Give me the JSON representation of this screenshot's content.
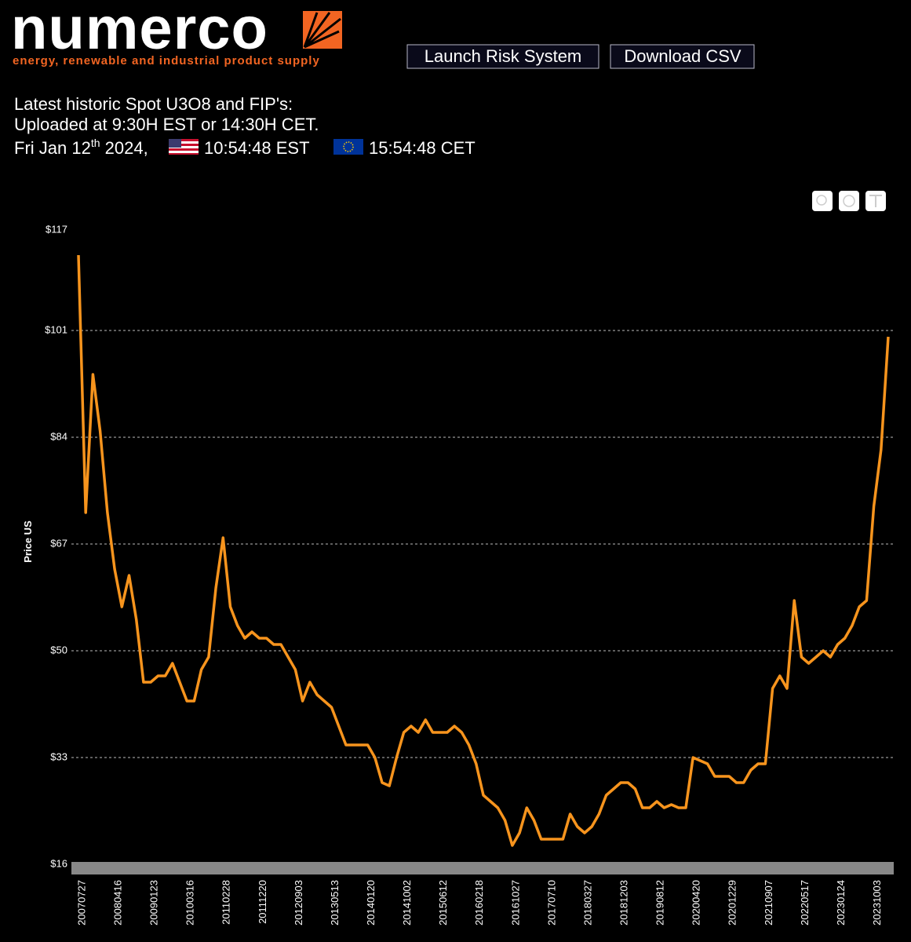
{
  "header": {
    "logo": "numerco",
    "tagline": "energy, renewable and industrial product supply"
  },
  "buttons": [
    "Launch Risk System",
    "Download CSV"
  ],
  "info": {
    "line1": "Latest historic Spot U3O8 and FIP's:",
    "line2": "Uploaded at 9:30H EST or 14:30H CET.",
    "date_main": "Fri Jan 12",
    "date_sup": "th",
    "date_year": " 2024,",
    "est": "10:54:48 EST",
    "cet": "15:54:48 CET"
  },
  "chart_data": {
    "type": "line",
    "y_label": "Price US",
    "categories": [
      "20070727",
      null,
      null,
      null,
      null,
      "20080416",
      null,
      null,
      null,
      null,
      "20090123",
      null,
      null,
      null,
      null,
      "20100316",
      null,
      null,
      null,
      null,
      "20110228",
      null,
      null,
      null,
      null,
      "20111220",
      null,
      null,
      null,
      null,
      "20120903",
      null,
      null,
      null,
      null,
      "20130513",
      null,
      null,
      null,
      null,
      "20140120",
      null,
      null,
      null,
      null,
      "20141002",
      null,
      null,
      null,
      null,
      "20150612",
      null,
      null,
      null,
      null,
      "20160218",
      null,
      null,
      null,
      null,
      "20161027",
      null,
      null,
      null,
      null,
      "20170710",
      null,
      null,
      null,
      null,
      "20180327",
      null,
      null,
      null,
      null,
      "20181203",
      null,
      null,
      null,
      null,
      "20190812",
      null,
      null,
      null,
      null,
      "20200420",
      null,
      null,
      null,
      null,
      "20201229",
      null,
      null,
      null,
      null,
      "20210907",
      null,
      null,
      null,
      null,
      "20220517",
      null,
      null,
      null,
      null,
      "20230124",
      null,
      null,
      null,
      null,
      "20231003",
      null,
      null
    ],
    "series": [
      {
        "color": "#f7941d",
        "values": [
          113,
          72,
          94,
          85,
          72,
          63,
          57,
          62,
          55,
          45,
          45,
          46,
          46,
          48,
          45,
          42,
          42,
          47,
          49,
          60,
          68,
          57,
          54,
          52,
          53,
          52,
          52,
          51,
          51,
          49,
          47,
          42,
          45,
          43,
          42,
          41,
          38,
          35,
          35,
          35,
          35,
          33,
          29,
          28.5,
          33,
          37,
          38,
          37,
          39,
          37,
          37,
          37,
          38,
          37,
          35,
          32,
          27,
          26,
          25,
          23,
          19,
          21,
          25,
          23,
          20,
          20,
          20,
          20,
          24,
          22,
          21,
          22,
          24,
          27,
          28,
          29,
          29,
          28,
          25,
          25,
          26,
          25,
          25.5,
          25,
          25,
          33,
          32.5,
          32,
          30,
          30,
          30,
          29,
          29,
          31,
          32,
          32,
          44,
          46,
          44,
          58,
          49,
          48,
          49,
          50,
          49,
          51,
          52,
          54,
          57,
          58,
          73,
          82,
          100
        ]
      }
    ],
    "ylim": [
      16,
      117
    ],
    "yticks": [
      {
        "value": 16,
        "label": "$16"
      },
      {
        "value": 33,
        "label": "$33"
      },
      {
        "value": 50,
        "label": "$50"
      },
      {
        "value": 67,
        "label": "$67"
      },
      {
        "value": 84,
        "label": "$84"
      },
      {
        "value": 101,
        "label": "$101"
      },
      {
        "value": 117,
        "label": "$117"
      }
    ],
    "grid": true
  }
}
